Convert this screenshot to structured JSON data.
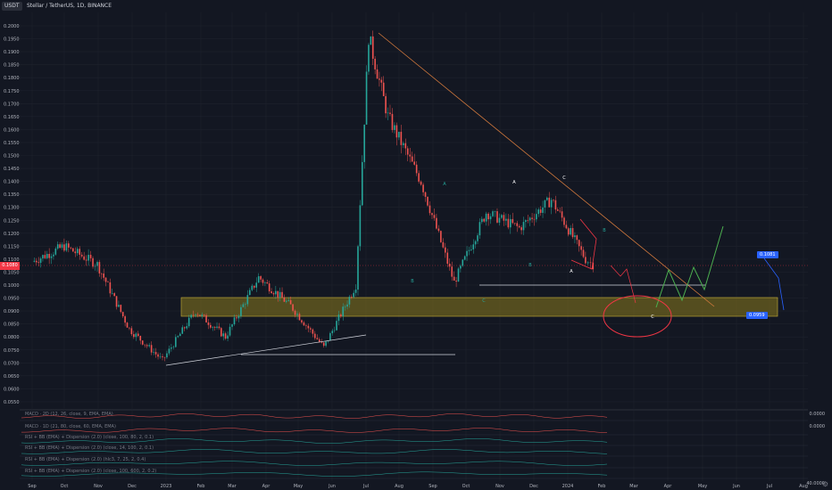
{
  "header": {
    "symbol": "USDT",
    "pair_title": "Stellar / TetherUS, 1D, BINANCE"
  },
  "price_axis": {
    "ticks": [
      "0.2000",
      "0.1950",
      "0.1900",
      "0.1850",
      "0.1800",
      "0.1750",
      "0.1700",
      "0.1650",
      "0.1600",
      "0.1550",
      "0.1500",
      "0.1450",
      "0.1400",
      "0.1350",
      "0.1300",
      "0.1250",
      "0.1200",
      "0.1150",
      "0.1100",
      "0.1050",
      "0.1000",
      "0.0950",
      "0.0900",
      "0.0850",
      "0.0800",
      "0.0750",
      "0.0700",
      "0.0650",
      "0.0600",
      "0.0550"
    ],
    "current_price_label": "0.1080"
  },
  "time_axis": {
    "ticks": [
      "Sep",
      "Oct",
      "Nov",
      "Dec",
      "2023",
      "Feb",
      "Mar",
      "Apr",
      "May",
      "Jun",
      "Jul",
      "Aug",
      "Sep",
      "Oct",
      "Nov",
      "Dec",
      "2024",
      "Feb",
      "Mar",
      "Apr",
      "May",
      "Jun",
      "Jul",
      "Aug"
    ]
  },
  "indicators": [
    {
      "label": "MACD · 2D (12, 26, close, 9, EMA, EMA)",
      "value": "0.0000"
    },
    {
      "label": "MACD · 1D (21, 80, close, 60, EMA, EMA)",
      "value": "0.0000"
    },
    {
      "label": "RSI + BB (EMA) + Dispersion (2.0) (close, 100, 80, 2, 0.1)",
      "value": ""
    },
    {
      "label": "RSI + BB (EMA) + Dispersion (2.0) (close, 14, 100, 2, 0.1)",
      "value": ""
    },
    {
      "label": "RSI + BB (EMA) + Dispersion (2.0) (hlc3, 7, 25, 2, 0.4)",
      "value": ""
    },
    {
      "label": "RSI + BB (EMA) + Dispersion (2.0) (close, 100, 600, 2, 0.2)",
      "value": ""
    }
  ],
  "indicator_scale_label": "40.0000",
  "wave_labels": [
    "A",
    "B",
    "C",
    "A",
    "B",
    "C",
    "A",
    "B",
    "C"
  ],
  "target_boxes": {
    "upper": "0.1081",
    "lower": "0.0959"
  },
  "colors": {
    "background": "#131722",
    "bull": "#26a69a",
    "bear": "#ef5350",
    "trendline": "#d47a3d",
    "support_zone": "#8a7a1d",
    "projection_green": "#4caf50",
    "projection_blue": "#2962ff",
    "ellipse_red": "#f23645"
  },
  "chart_data": {
    "type": "line",
    "title": "Stellar / TetherUS, 1D, BINANCE",
    "xlabel": "",
    "ylabel": "",
    "ylim": [
      0.055,
      0.2
    ],
    "x": [
      "2022-09-01",
      "2022-10-01",
      "2022-11-01",
      "2022-12-01",
      "2023-01-01",
      "2023-02-01",
      "2023-03-01",
      "2023-04-01",
      "2023-05-01",
      "2023-06-01",
      "2023-07-01",
      "2023-07-13",
      "2023-07-31",
      "2023-08-31",
      "2023-10-01",
      "2023-10-31",
      "2023-12-01",
      "2023-12-31",
      "2024-02-01",
      "2024-02-08"
    ],
    "series": [
      {
        "values": [
          0.109,
          0.115,
          0.108,
          0.083,
          0.071,
          0.09,
          0.08,
          0.103,
          0.092,
          0.076,
          0.1,
          0.196,
          0.165,
          0.14,
          0.101,
          0.128,
          0.122,
          0.133,
          0.11,
          0.108
        ]
      }
    ],
    "annotations": {
      "support_zone": [
        0.0893,
        0.0965
      ],
      "descending_trendline": {
        "from": [
          "2023-07-13",
          0.196
        ],
        "to": [
          "2024-05-01",
          0.092
        ]
      },
      "grid": true,
      "price_scale_side": "left"
    }
  }
}
